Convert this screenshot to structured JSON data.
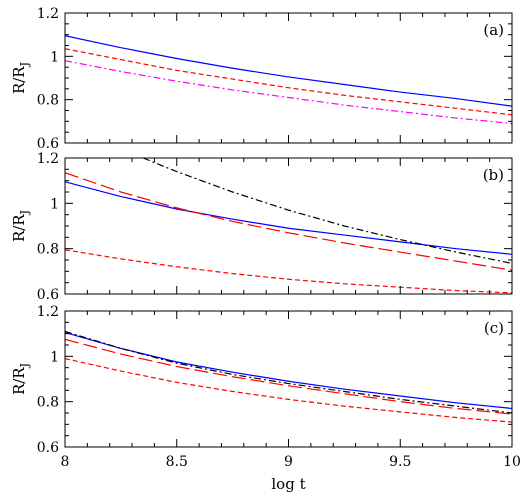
{
  "chart_data": [
    {
      "type": "line",
      "panel_label": "(a)",
      "ylabel_main": "R/R",
      "ylabel_sub": "J",
      "xlim": [
        8,
        10
      ],
      "ylim": [
        0.6,
        1.2
      ],
      "xticks": [
        8,
        8.5,
        9,
        9.5,
        10
      ],
      "xtick_labels": [
        "",
        "",
        "",
        "",
        ""
      ],
      "yticks": [
        0.6,
        0.8,
        1.0,
        1.2
      ],
      "ytick_labels": [
        "0.6",
        "0.8",
        "1",
        "1.2"
      ],
      "series": [
        {
          "color": "#0000ff",
          "style": "solid",
          "x": [
            8,
            8.25,
            8.5,
            8.75,
            9,
            9.25,
            9.5,
            9.75,
            10
          ],
          "y": [
            1.095,
            1.04,
            0.99,
            0.945,
            0.905,
            0.87,
            0.835,
            0.805,
            0.77
          ]
        },
        {
          "color": "#ff0000",
          "style": "short-dash",
          "x": [
            8,
            8.25,
            8.5,
            8.75,
            9,
            9.25,
            9.5,
            9.75,
            10
          ],
          "y": [
            1.035,
            0.985,
            0.935,
            0.895,
            0.855,
            0.82,
            0.79,
            0.76,
            0.73
          ]
        },
        {
          "color": "#ff00ff",
          "style": "dash-dot",
          "x": [
            8,
            8.25,
            8.5,
            8.75,
            9,
            9.25,
            9.5,
            9.75,
            10
          ],
          "y": [
            0.98,
            0.93,
            0.885,
            0.845,
            0.81,
            0.775,
            0.745,
            0.715,
            0.69
          ]
        }
      ]
    },
    {
      "type": "line",
      "panel_label": "(b)",
      "ylabel_main": "R/R",
      "ylabel_sub": "J",
      "xlim": [
        8,
        10
      ],
      "ylim": [
        0.6,
        1.2
      ],
      "xticks": [
        8,
        8.5,
        9,
        9.5,
        10
      ],
      "xtick_labels": [
        "",
        "",
        "",
        "",
        ""
      ],
      "yticks": [
        0.6,
        0.8,
        1.0,
        1.2
      ],
      "ytick_labels": [
        "0.6",
        "0.8",
        "1",
        "1.2"
      ],
      "series": [
        {
          "color": "#0000ff",
          "style": "solid",
          "x": [
            8,
            8.25,
            8.5,
            8.75,
            9,
            9.25,
            9.5,
            9.75,
            10
          ],
          "y": [
            1.095,
            1.03,
            0.975,
            0.93,
            0.89,
            0.86,
            0.83,
            0.8,
            0.775
          ]
        },
        {
          "color": "#ff0000",
          "style": "long-dash",
          "x": [
            8,
            8.25,
            8.5,
            8.75,
            9,
            9.25,
            9.5,
            9.75,
            10
          ],
          "y": [
            1.135,
            1.05,
            0.98,
            0.92,
            0.87,
            0.825,
            0.785,
            0.745,
            0.705
          ]
        },
        {
          "color": "#000000",
          "style": "dash-dot",
          "x": [
            8.35,
            8.5,
            8.75,
            9,
            9.25,
            9.5,
            9.75,
            10
          ],
          "y": [
            1.2,
            1.14,
            1.05,
            0.97,
            0.9,
            0.84,
            0.785,
            0.735
          ]
        },
        {
          "color": "#ff0000",
          "style": "short-dash",
          "x": [
            8,
            8.25,
            8.5,
            8.75,
            9,
            9.25,
            9.5,
            9.75,
            10
          ],
          "y": [
            0.795,
            0.755,
            0.72,
            0.69,
            0.665,
            0.645,
            0.63,
            0.615,
            0.605
          ]
        }
      ]
    },
    {
      "type": "line",
      "panel_label": "(c)",
      "ylabel_main": "R/R",
      "ylabel_sub": "J",
      "xlabel": "log t",
      "xlim": [
        8,
        10
      ],
      "ylim": [
        0.6,
        1.2
      ],
      "xticks": [
        8,
        8.5,
        9,
        9.5,
        10
      ],
      "xtick_labels": [
        "8",
        "8.5",
        "9",
        "9.5",
        "10"
      ],
      "yticks": [
        0.6,
        0.8,
        1.0,
        1.2
      ],
      "ytick_labels": [
        "0.6",
        "0.8",
        "1",
        "1.2"
      ],
      "series": [
        {
          "color": "#0000ff",
          "style": "solid",
          "x": [
            8,
            8.25,
            8.5,
            8.75,
            9,
            9.25,
            9.5,
            9.75,
            10
          ],
          "y": [
            1.105,
            1.035,
            0.975,
            0.93,
            0.89,
            0.855,
            0.825,
            0.795,
            0.77
          ]
        },
        {
          "color": "#000000",
          "style": "dash-dot",
          "x": [
            8,
            8.25,
            8.5,
            8.75,
            9,
            9.25,
            9.5,
            9.75,
            10
          ],
          "y": [
            1.11,
            1.035,
            0.97,
            0.92,
            0.88,
            0.845,
            0.81,
            0.78,
            0.75
          ]
        },
        {
          "color": "#ff0000",
          "style": "long-dash",
          "x": [
            8,
            8.25,
            8.5,
            8.75,
            9,
            9.25,
            9.5,
            9.75,
            10
          ],
          "y": [
            1.075,
            1.01,
            0.955,
            0.91,
            0.87,
            0.835,
            0.8,
            0.77,
            0.745
          ]
        },
        {
          "color": "#ff0000",
          "style": "short-dash",
          "x": [
            8,
            8.25,
            8.5,
            8.75,
            9,
            9.25,
            9.5,
            9.75,
            10
          ],
          "y": [
            0.99,
            0.935,
            0.885,
            0.845,
            0.81,
            0.78,
            0.755,
            0.73,
            0.71
          ]
        }
      ]
    }
  ]
}
